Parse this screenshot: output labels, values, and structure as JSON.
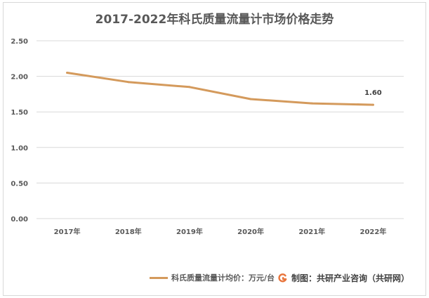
{
  "colors": {
    "series": "#D49A5C",
    "grid": "#d9d9d9",
    "text": "#595959",
    "logo": "#E8743B"
  },
  "icons": {
    "credit_logo": "gongyan-logo-icon"
  },
  "chart_data": {
    "type": "line",
    "title": "2017-2022年科氏质量流量计市场价格走势",
    "categories": [
      "2017年",
      "2018年",
      "2019年",
      "2020年",
      "2021年",
      "2022年"
    ],
    "series": [
      {
        "name": "科氏质量流量计均价：万元/台",
        "values": [
          2.05,
          1.92,
          1.85,
          1.68,
          1.62,
          1.6
        ]
      }
    ],
    "data_labels": [
      {
        "category": "2022年",
        "text": "1.60"
      }
    ],
    "ylim": [
      0,
      2.5
    ],
    "yticks": [
      "0.00",
      "0.50",
      "1.00",
      "1.50",
      "2.00",
      "2.50"
    ],
    "grid": true,
    "legend_position": "bottom",
    "xlabel": "",
    "ylabel": ""
  },
  "credit": "制图：共研产业咨询（共研网）"
}
